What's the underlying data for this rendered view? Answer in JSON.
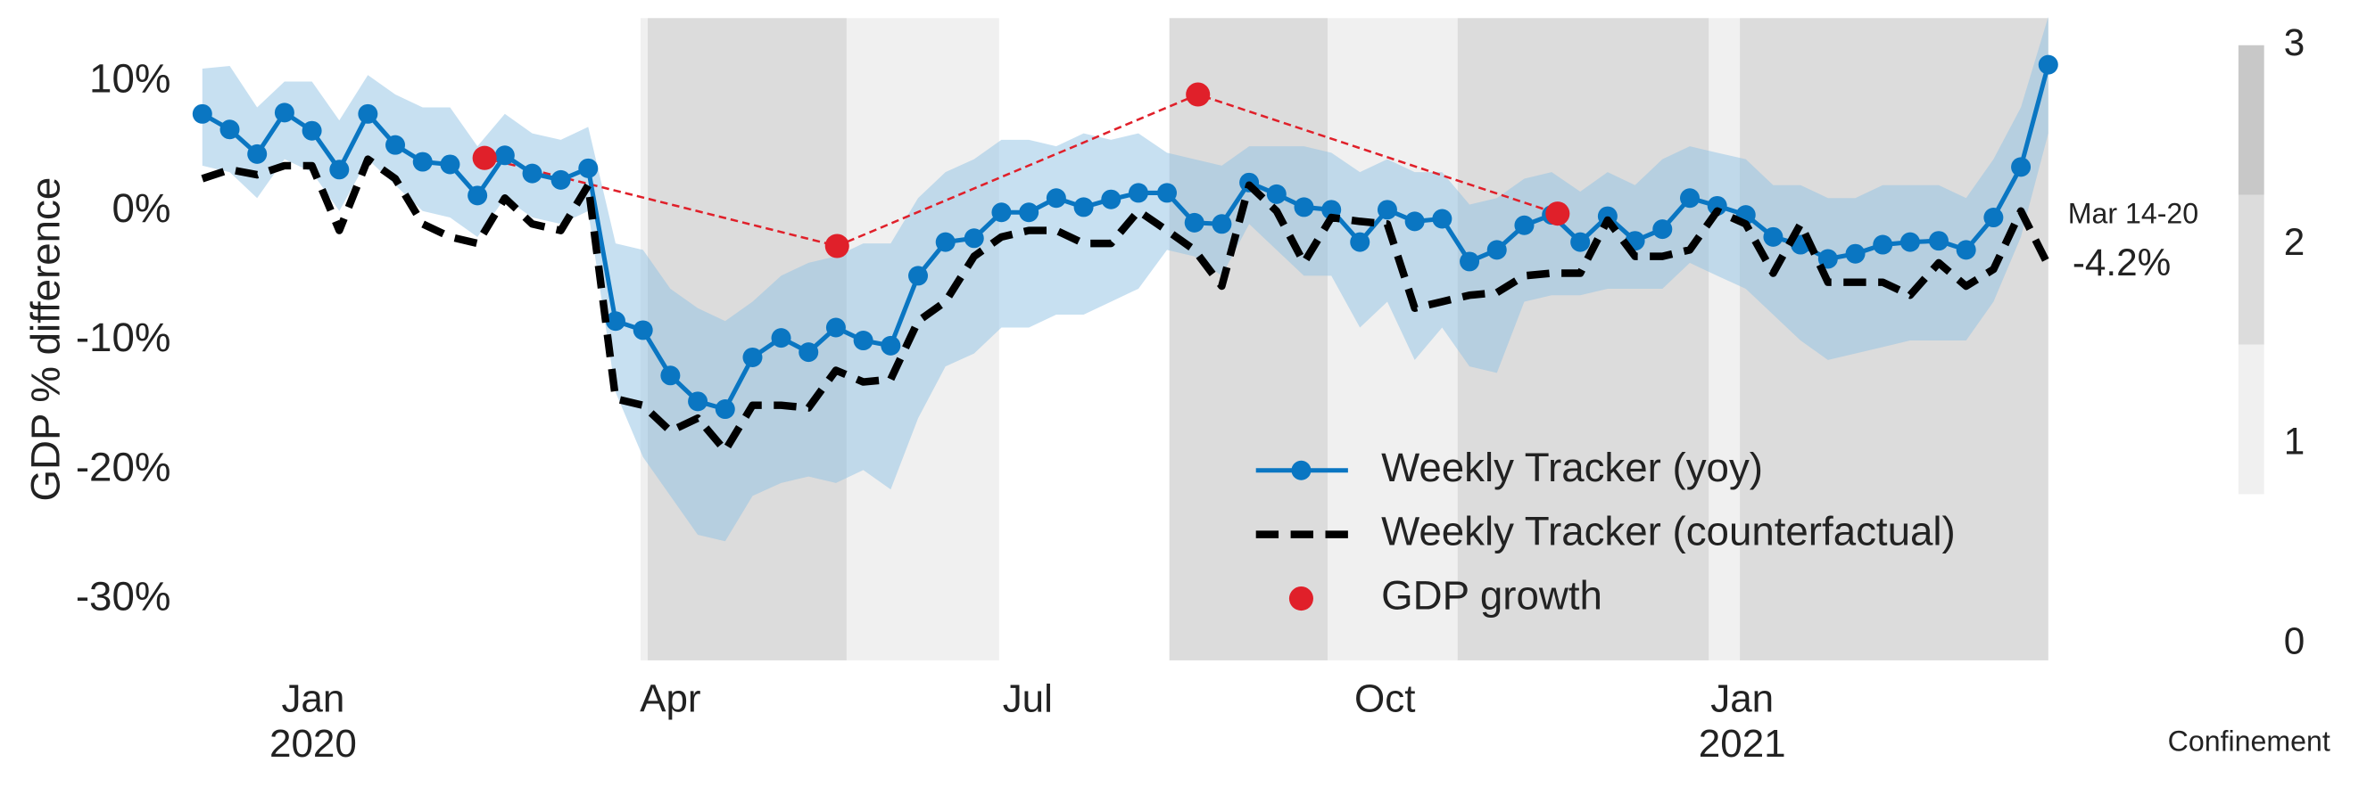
{
  "chart_data": {
    "type": "line",
    "y_label": "GDP % difference",
    "legend": "lower center",
    "x": [
      -0.93,
      -0.7,
      -0.47,
      -0.24,
      -0.01,
      0.22,
      0.46,
      0.69,
      0.92,
      1.15,
      1.38,
      1.61,
      1.84,
      2.08,
      2.31,
      2.54,
      2.77,
      3.0,
      3.23,
      3.46,
      3.69,
      3.93,
      4.16,
      4.39,
      4.62,
      4.85,
      5.08,
      5.31,
      5.55,
      5.78,
      6.01,
      6.24,
      6.47,
      6.7,
      6.93,
      7.17,
      7.4,
      7.63,
      7.86,
      8.09,
      8.32,
      8.55,
      8.79,
      9.02,
      9.25,
      9.48,
      9.71,
      9.94,
      10.17,
      10.4,
      10.64,
      10.87,
      11.1,
      11.33,
      11.56,
      11.79,
      12.03,
      12.26,
      12.49,
      12.72,
      12.95,
      13.18,
      13.41,
      13.65,
      13.88,
      14.11,
      14.34,
      14.57
    ],
    "xlim": [
      -1.03,
      14.57
    ],
    "xticks": [
      {
        "value": 0,
        "label": "Jan\n2020"
      },
      {
        "value": 3,
        "label": "Apr"
      },
      {
        "value": 6,
        "label": "Jul"
      },
      {
        "value": 9,
        "label": "Oct"
      },
      {
        "value": 12,
        "label": "Jan\n2021"
      }
    ],
    "ylim": [
      -34.7,
      14.9
    ],
    "yticks": [
      {
        "value": 10,
        "label": "10%"
      },
      {
        "value": 0,
        "label": "0%"
      },
      {
        "value": -10,
        "label": "-10%"
      },
      {
        "value": -20,
        "label": "-20%"
      },
      {
        "value": -30,
        "label": "-30%"
      }
    ],
    "series": [
      {
        "name": "Weekly Tracker (yoy)",
        "color": "#0a76c2",
        "marker": true,
        "values": [
          7.5,
          6.3,
          4.4,
          7.6,
          6.2,
          3.2,
          7.5,
          5.1,
          3.8,
          3.6,
          1.2,
          4.3,
          2.9,
          2.4,
          3.3,
          -8.5,
          -9.2,
          -12.7,
          -14.7,
          -15.3,
          -11.3,
          -9.8,
          -10.9,
          -9.0,
          -10.0,
          -10.4,
          -5.0,
          -2.4,
          -2.1,
          -0.1,
          -0.1,
          1.0,
          0.3,
          0.9,
          1.4,
          1.4,
          -0.9,
          -1.0,
          2.2,
          1.3,
          0.3,
          0.1,
          -2.4,
          0.1,
          -0.8,
          -0.6,
          -3.9,
          -3.0,
          -1.1,
          -0.3,
          -2.4,
          -0.4,
          -2.3,
          -1.4,
          1.0,
          0.4,
          -0.3,
          -2.0,
          -2.6,
          -3.7,
          -3.3,
          -2.6,
          -2.4,
          -2.3,
          -3.0,
          -0.5,
          3.4,
          11.3
        ]
      },
      {
        "name": "Weekly Tracker (counterfactual)",
        "color": "#000000",
        "dashed": true,
        "values": [
          2.5,
          3.2,
          2.8,
          3.5,
          3.5,
          -1.5,
          4.0,
          2.5,
          -1.0,
          -2.0,
          -2.5,
          1.0,
          -1.0,
          -1.5,
          2.0,
          -14.5,
          -15.0,
          -17.0,
          -16.0,
          -18.5,
          -15.0,
          -15.0,
          -15.2,
          -12.3,
          -13.2,
          -13.0,
          -8.5,
          -7.0,
          -3.5,
          -2.0,
          -1.5,
          -1.5,
          -2.5,
          -2.5,
          0.0,
          -1.5,
          -3.0,
          -5.8,
          2.0,
          0.0,
          -4.0,
          -0.5,
          -0.8,
          -1.0,
          -7.5,
          -7.0,
          -6.5,
          -6.3,
          -5.0,
          -4.8,
          -4.8,
          -0.7,
          -3.5,
          -3.5,
          -3.0,
          0.0,
          -1.0,
          -4.8,
          -1.0,
          -5.5,
          -5.5,
          -5.5,
          -6.5,
          -4.0,
          -5.8,
          -4.5,
          0.0,
          -4.2
        ]
      }
    ],
    "band": {
      "color": "#8fc1e3",
      "upper": [
        11,
        11.2,
        8,
        10,
        10,
        7,
        10.5,
        9,
        8,
        8,
        5,
        7.5,
        6,
        5.5,
        6.5,
        -2.5,
        -3,
        -6,
        -7.5,
        -8.5,
        -7,
        -5,
        -4,
        -3.5,
        -2.5,
        -2.5,
        1,
        3,
        4,
        5.5,
        5.5,
        5,
        6,
        5.5,
        6,
        4.5,
        4,
        3.5,
        5,
        5,
        5,
        4.5,
        3,
        4,
        3,
        3,
        0.5,
        1,
        2.5,
        3,
        1.5,
        3,
        2,
        4,
        5,
        4.5,
        4,
        2,
        2,
        1,
        1,
        2,
        2,
        2,
        1,
        4,
        8,
        15
      ],
      "lower": [
        3.5,
        3,
        1,
        4,
        3,
        0,
        4,
        2,
        0,
        -0.5,
        -2,
        1,
        -0.5,
        -1,
        0,
        -14,
        -19,
        -22,
        -25,
        -25.5,
        -22,
        -21,
        -20.5,
        -21,
        -20,
        -21.5,
        -16,
        -12,
        -11,
        -9,
        -9,
        -8,
        -8,
        -7,
        -6,
        -3,
        -3.5,
        -5,
        -1,
        -3,
        -5,
        -5,
        -9,
        -7,
        -11.5,
        -9,
        -12,
        -12.5,
        -7,
        -6.5,
        -6.5,
        -6,
        -6,
        -6,
        -4,
        -5,
        -6,
        -8,
        -10,
        -11.5,
        -11,
        -10.5,
        -10,
        -10,
        -10,
        -7,
        -2,
        6
      ]
    },
    "gdp_growth": {
      "name": "GDP growth",
      "color": "#e0202a",
      "x": [
        1.44,
        4.4,
        7.43,
        10.45
      ],
      "values": [
        4.1,
        -2.7,
        9.0,
        -0.2
      ]
    },
    "confinement": {
      "label": "Confinement",
      "lim": [
        0,
        3
      ],
      "ticks": [
        0,
        1,
        2,
        3
      ],
      "levels": [
        {
          "level": 1,
          "from": 0.75,
          "to": 1.5,
          "color": "#f0f0f0"
        },
        {
          "level": 2,
          "from": 1.5,
          "to": 2.25,
          "color": "#dcdcdc"
        },
        {
          "level": 3,
          "from": 2.25,
          "to": 3,
          "color": "#c8c8c8"
        }
      ],
      "periods": [
        {
          "start": 2.75,
          "end": 2.81,
          "level": 1
        },
        {
          "start": 2.81,
          "end": 4.48,
          "level": 2
        },
        {
          "start": 4.48,
          "end": 5.76,
          "level": 1
        },
        {
          "start": 7.19,
          "end": 8.52,
          "level": 2
        },
        {
          "start": 8.52,
          "end": 9.61,
          "level": 1
        },
        {
          "start": 9.61,
          "end": 11.72,
          "level": 2
        },
        {
          "start": 11.72,
          "end": 11.98,
          "level": 1
        },
        {
          "start": 11.98,
          "end": 14.57,
          "level": 2
        }
      ]
    },
    "annotation": {
      "date": "Mar 14-20",
      "value": -4.2,
      "value_label": "-4.2%"
    }
  }
}
